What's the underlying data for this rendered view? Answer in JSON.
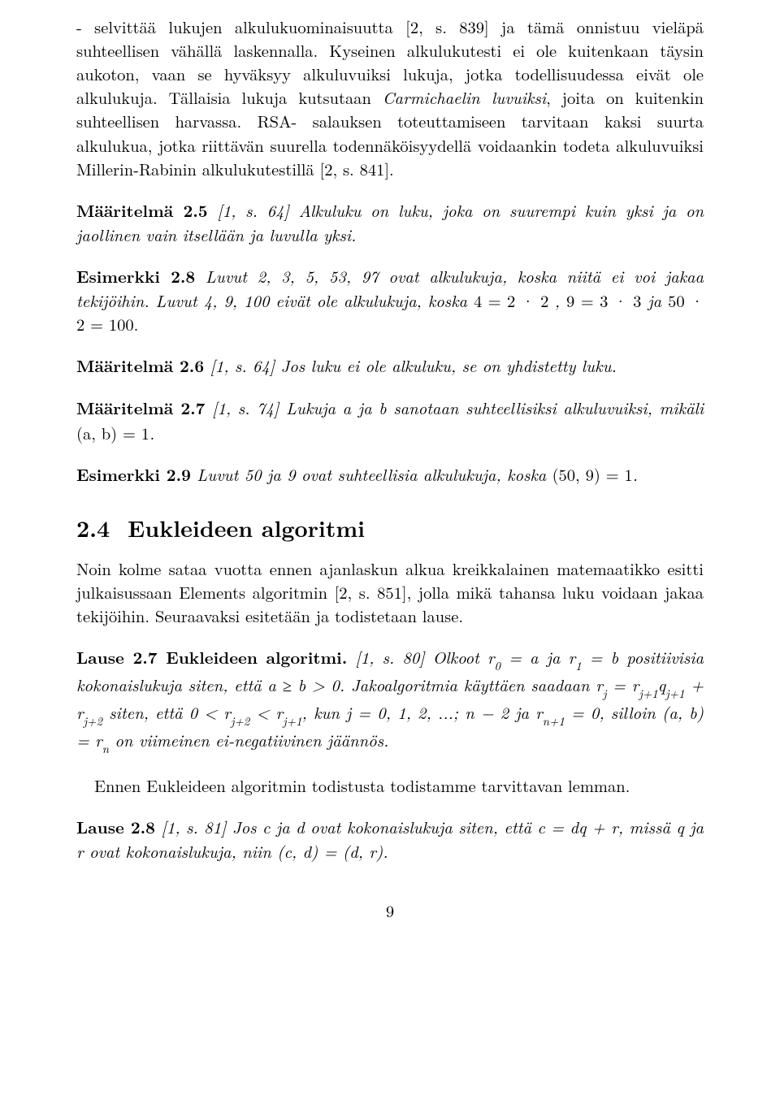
{
  "paragraphs": {
    "intro": "- selvittää lukujen alkulukuominaisuutta [2, s. 839] ja tämä onnistuu vieläpä suhteellisen vähällä laskennalla. Kyseinen alkulukutesti ei ole kuitenkaan täysin aukoton, vaan se hyväksyy alkuluvuiksi lukuja, jotka todellisuudessa eivät ole alkulukuja. Tällaisia lukuja kutsutaan ",
    "intro_em": "Carmichaelin luvuiksi",
    "intro_tail": ", joita on kuitenkin suhteellisen harvassa. RSA- salauksen toteuttamiseen tarvitaan kaksi suurta alkulukua, jotka riittävän suurella todennäköisyydellä voidaankin todeta alkuluvuiksi Millerin-Rabinin alkulukutestillä [2, s. 841].",
    "def25_label": "Määritelmä 2.5",
    "def25_body": " [1, s. 64] Alkuluku on luku, joka on suurempi kuin yksi ja on jaollinen vain itsellään ja luvulla yksi.",
    "ex28_label": "Esimerkki 2.8",
    "ex28_body_a": " Luvut 2, 3, 5, 53, 97 ovat alkulukuja, koska niitä ei voi jakaa tekijöihin. Luvut 4, 9, 100 eivät ole alkulukuja, koska ",
    "ex28_math1": "4 = 2 · 2 ",
    "ex28_mid": ", ",
    "ex28_math2": "9 = 3 · 3",
    "ex28_mid2": " ja ",
    "ex28_math3": "50 · 2 = 100",
    "ex28_tail": ".",
    "def26_label": "Määritelmä 2.6",
    "def26_body": " [1, s. 64] Jos luku ei ole alkuluku, se on yhdistetty luku.",
    "def27_label": "Määritelmä 2.7",
    "def27_body": " [1, s. 74] Lukuja a ja b sanotaan suhteellisiksi alkuluvuiksi, mikäli ",
    "def27_math": "(a, b) = 1",
    "def27_tail": ".",
    "ex29_label": "Esimerkki 2.9",
    "ex29_body": " Luvut 50 ja 9 ovat suhteellisia alkulukuja, koska ",
    "ex29_math": "(50, 9) = 1",
    "ex29_tail": ".",
    "sec_no": "2.4",
    "sec_title": "Eukleideen algoritmi",
    "sec_body": "Noin kolme sataa vuotta ennen ajanlaskun alkua kreikkalainen matemaatikko esitti julkaisussaan Elements algoritmin [2, s. 851], jolla mikä tahansa luku voidaan jakaa tekijöihin. Seuraavaksi esitetään ja todistetaan lause.",
    "thm27_label": "Lause 2.7 Eukleideen algoritmi.",
    "thm27_a": " [1, s. 80] Olkoot ",
    "thm27_r0": "r",
    "thm27_r0sub": "0",
    "thm27_r0eq": " = a ja ",
    "thm27_r1": "r",
    "thm27_r1sub": "1",
    "thm27_r1eq": " = b positiivisia kokonaislukuja siten, että a ≥ b > 0. Jakoalgoritmia käyttäen saadaan ",
    "thm27_line3": " siten, että 0 < r",
    "thm27_jp2a": "j+2",
    "thm27_lt": " < r",
    "thm27_jp1a": "j+1",
    "thm27_when": ", kun j = 0, 1, 2, ...; n − 2 ja ",
    "thm27_rn1": "r",
    "thm27_n1": "n+1",
    "thm27_eq0": " = 0, silloin (a, b) = r",
    "thm27_n": "n",
    "thm27_tail": " on viimeinen ei-negatiivinen jäännös.",
    "lemma_intro": "Ennen Eukleideen algoritmin todistusta todistamme tarvittavan lemman.",
    "thm28_label": "Lause 2.8",
    "thm28_body": " [1, s. 81] Jos c ja d ovat kokonaislukuja siten, että c = dq + r, missä q ja r ovat kokonaislukuja, niin (c, d) = (d, r).",
    "page_no": "9"
  }
}
